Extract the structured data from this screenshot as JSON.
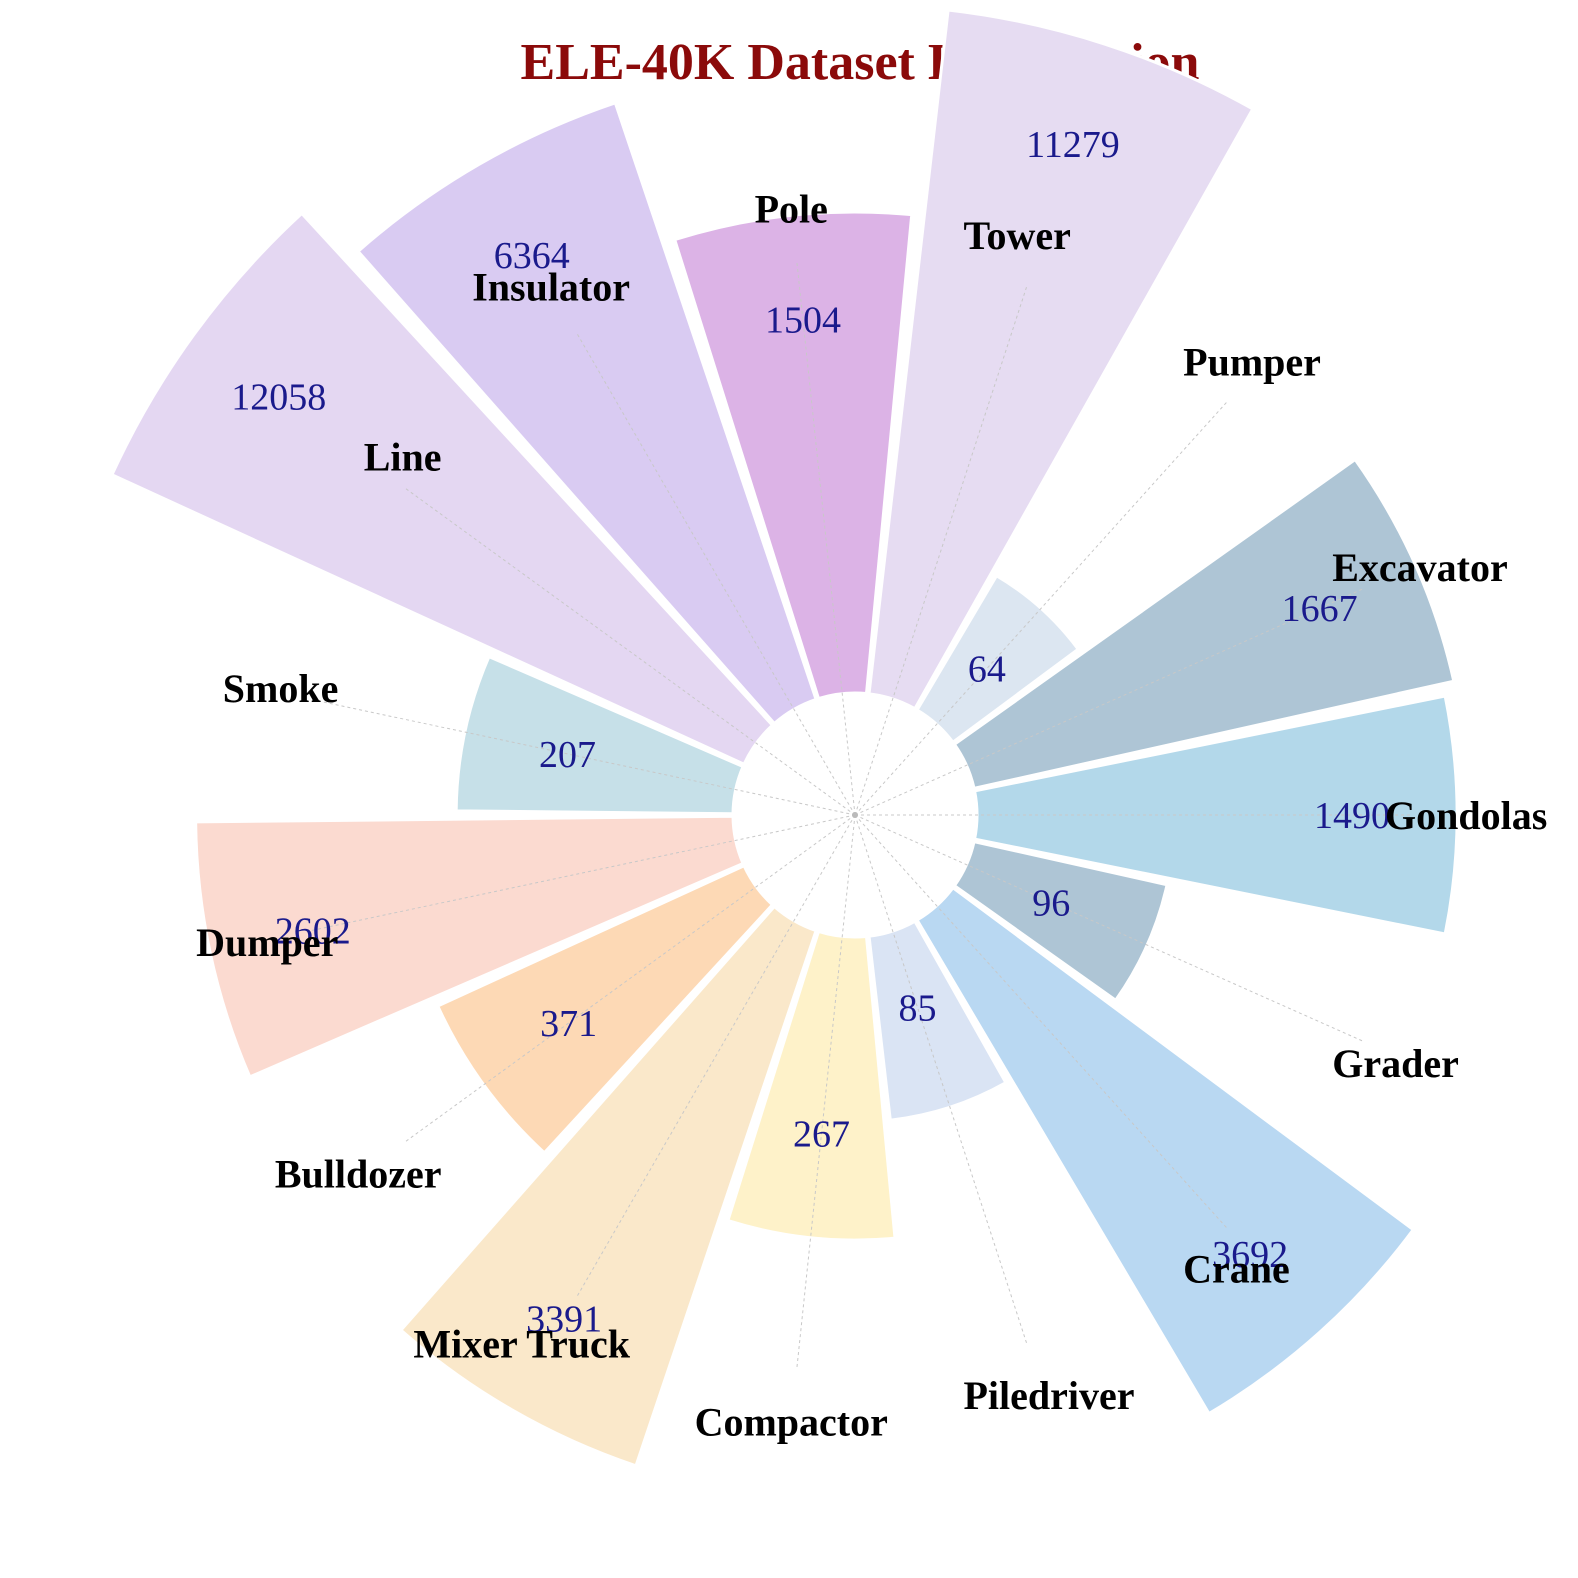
{
  "chart_data": {
    "type": "bar",
    "polar": true,
    "title": "ELE-40K Dataset Distribution",
    "legend": "none",
    "grid": false,
    "value_scale": "log",
    "categories": [
      "Gondolas",
      "Excavator",
      "Pumper",
      "Tower",
      "Pole",
      "Insulator",
      "Line",
      "Smoke",
      "Dumper",
      "Bulldozer",
      "Mixer Truck",
      "Compactor",
      "Piledriver",
      "Crane",
      "Grader"
    ],
    "values": [
      1490,
      1667,
      64,
      11279,
      1504,
      6364,
      12058,
      207,
      2602,
      371,
      3391,
      267,
      85,
      3692,
      96
    ],
    "colors": [
      "#b3d8ea",
      "#aec5d5",
      "#dce6f1",
      "#e6dcf2",
      "#dcb3e6",
      "#d9cbf2",
      "#e4d7f2",
      "#c6e0e8",
      "#fbdad0",
      "#fdd9b5",
      "#fae8ca",
      "#fef2c9",
      "#dae4f4",
      "#b9d8f2",
      "#aec5d5"
    ]
  }
}
